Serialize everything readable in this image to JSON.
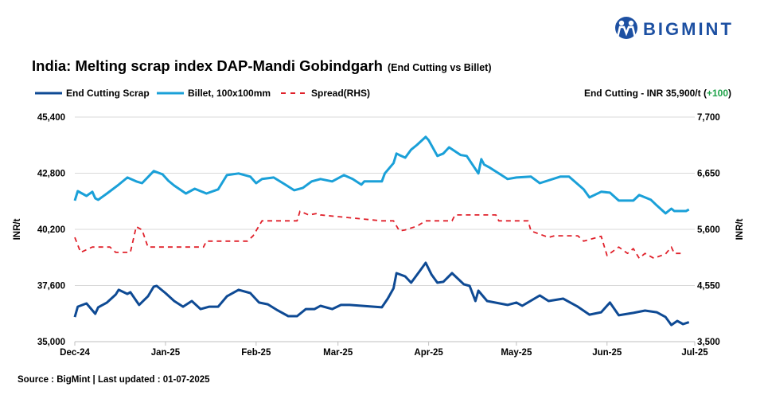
{
  "brand": {
    "name": "BIGMINT",
    "color": "#1d50a2"
  },
  "header": {
    "title": "India: Melting scrap index DAP-Mandi Gobindgarh",
    "subtitle": "(End Cutting vs Billet)",
    "latest_prefix": "End Cutting - INR 35,900/t (",
    "latest_change": "+100",
    "latest_suffix": ")",
    "change_color": "#1fa34a"
  },
  "footer": {
    "source": "Source : BigMint | Last updated : 01-07-2025"
  },
  "chart_data": {
    "type": "line",
    "title": "India: Melting scrap index DAP-Mandi Gobindgarh (End Cutting vs Billet)",
    "xlabel": "",
    "ylabel": "INR/t",
    "y2label": "INR/t",
    "xlim": [
      "2024-12-01",
      "2025-07-01"
    ],
    "ylim": [
      35000,
      45400
    ],
    "y2lim": [
      3500,
      7700
    ],
    "yticks": [
      "35,000",
      "37,600",
      "40,200",
      "42,800",
      "45,400"
    ],
    "y2ticks": [
      "3,500",
      "4,550",
      "5,600",
      "6,650",
      "7,700"
    ],
    "xticks": [
      {
        "date": "2024-12-01",
        "label": "Dec-24"
      },
      {
        "date": "2025-01-01",
        "label": "Jan-25"
      },
      {
        "date": "2025-02-01",
        "label": "Feb-25"
      },
      {
        "date": "2025-03-01",
        "label": "Mar-25"
      },
      {
        "date": "2025-04-01",
        "label": "Apr-25"
      },
      {
        "date": "2025-05-01",
        "label": "May-25"
      },
      {
        "date": "2025-06-01",
        "label": "Jun-25"
      },
      {
        "date": "2025-07-01",
        "label": "Jul-25"
      }
    ],
    "grid": true,
    "legend": "top-left",
    "series": [
      {
        "name": "End Cutting Scrap",
        "axis": "left",
        "color": "#0e4a94",
        "style": "solid",
        "points": [
          [
            "2024-12-01",
            36140
          ],
          [
            "2024-12-02",
            36620
          ],
          [
            "2024-12-05",
            36770
          ],
          [
            "2024-12-08",
            36290
          ],
          [
            "2024-12-09",
            36590
          ],
          [
            "2024-12-12",
            36810
          ],
          [
            "2024-12-15",
            37180
          ],
          [
            "2024-12-16",
            37400
          ],
          [
            "2024-12-19",
            37210
          ],
          [
            "2024-12-20",
            37290
          ],
          [
            "2024-12-23",
            36700
          ],
          [
            "2024-12-26",
            37100
          ],
          [
            "2024-12-28",
            37550
          ],
          [
            "2024-12-29",
            37580
          ],
          [
            "2025-01-01",
            37250
          ],
          [
            "2025-01-04",
            36880
          ],
          [
            "2025-01-07",
            36620
          ],
          [
            "2025-01-10",
            36880
          ],
          [
            "2025-01-13",
            36510
          ],
          [
            "2025-01-16",
            36620
          ],
          [
            "2025-01-19",
            36620
          ],
          [
            "2025-01-22",
            37100
          ],
          [
            "2025-01-26",
            37400
          ],
          [
            "2025-01-30",
            37250
          ],
          [
            "2025-02-02",
            36810
          ],
          [
            "2025-02-05",
            36730
          ],
          [
            "2025-02-08",
            36480
          ],
          [
            "2025-02-12",
            36180
          ],
          [
            "2025-02-15",
            36180
          ],
          [
            "2025-02-18",
            36510
          ],
          [
            "2025-02-21",
            36510
          ],
          [
            "2025-02-23",
            36660
          ],
          [
            "2025-02-27",
            36510
          ],
          [
            "2025-03-02",
            36700
          ],
          [
            "2025-03-05",
            36700
          ],
          [
            "2025-03-16",
            36590
          ],
          [
            "2025-03-18",
            36990
          ],
          [
            "2025-03-20",
            37470
          ],
          [
            "2025-03-21",
            38170
          ],
          [
            "2025-03-24",
            38020
          ],
          [
            "2025-03-26",
            37730
          ],
          [
            "2025-03-29",
            38280
          ],
          [
            "2025-03-31",
            38650
          ],
          [
            "2025-04-02",
            38100
          ],
          [
            "2025-04-04",
            37730
          ],
          [
            "2025-04-06",
            37770
          ],
          [
            "2025-04-09",
            38170
          ],
          [
            "2025-04-13",
            37660
          ],
          [
            "2025-04-15",
            37580
          ],
          [
            "2025-04-17",
            36880
          ],
          [
            "2025-04-18",
            37360
          ],
          [
            "2025-04-21",
            36880
          ],
          [
            "2025-04-28",
            36700
          ],
          [
            "2025-05-01",
            36810
          ],
          [
            "2025-05-03",
            36660
          ],
          [
            "2025-05-09",
            37140
          ],
          [
            "2025-05-12",
            36880
          ],
          [
            "2025-05-17",
            36990
          ],
          [
            "2025-05-22",
            36620
          ],
          [
            "2025-05-26",
            36250
          ],
          [
            "2025-05-30",
            36360
          ],
          [
            "2025-06-02",
            36810
          ],
          [
            "2025-06-05",
            36220
          ],
          [
            "2025-06-10",
            36330
          ],
          [
            "2025-06-14",
            36440
          ],
          [
            "2025-06-18",
            36360
          ],
          [
            "2025-06-21",
            36140
          ],
          [
            "2025-06-23",
            35770
          ],
          [
            "2025-06-25",
            35960
          ],
          [
            "2025-06-27",
            35810
          ],
          [
            "2025-06-29",
            35900
          ]
        ]
      },
      {
        "name": "Billet, 100x100mm",
        "axis": "left",
        "color": "#1aa0d8",
        "style": "solid",
        "points": [
          [
            "2024-12-01",
            41530
          ],
          [
            "2024-12-02",
            41970
          ],
          [
            "2024-12-05",
            41750
          ],
          [
            "2024-12-07",
            41940
          ],
          [
            "2024-12-08",
            41640
          ],
          [
            "2024-12-09",
            41570
          ],
          [
            "2024-12-12",
            41860
          ],
          [
            "2024-12-16",
            42270
          ],
          [
            "2024-12-19",
            42600
          ],
          [
            "2024-12-22",
            42420
          ],
          [
            "2024-12-24",
            42340
          ],
          [
            "2024-12-28",
            42900
          ],
          [
            "2024-12-31",
            42750
          ],
          [
            "2025-01-02",
            42450
          ],
          [
            "2025-01-04",
            42230
          ],
          [
            "2025-01-08",
            41860
          ],
          [
            "2025-01-11",
            42080
          ],
          [
            "2025-01-15",
            41860
          ],
          [
            "2025-01-19",
            42050
          ],
          [
            "2025-01-22",
            42710
          ],
          [
            "2025-01-26",
            42790
          ],
          [
            "2025-01-30",
            42640
          ],
          [
            "2025-02-01",
            42340
          ],
          [
            "2025-02-03",
            42530
          ],
          [
            "2025-02-07",
            42600
          ],
          [
            "2025-02-11",
            42270
          ],
          [
            "2025-02-14",
            42010
          ],
          [
            "2025-02-17",
            42120
          ],
          [
            "2025-02-20",
            42420
          ],
          [
            "2025-02-23",
            42530
          ],
          [
            "2025-02-27",
            42420
          ],
          [
            "2025-03-03",
            42710
          ],
          [
            "2025-03-06",
            42530
          ],
          [
            "2025-03-09",
            42270
          ],
          [
            "2025-03-10",
            42420
          ],
          [
            "2025-03-16",
            42420
          ],
          [
            "2025-03-17",
            42790
          ],
          [
            "2025-03-20",
            43270
          ],
          [
            "2025-03-21",
            43710
          ],
          [
            "2025-03-22",
            43640
          ],
          [
            "2025-03-24",
            43520
          ],
          [
            "2025-03-26",
            43890
          ],
          [
            "2025-03-28",
            44110
          ],
          [
            "2025-03-31",
            44480
          ],
          [
            "2025-04-01",
            44330
          ],
          [
            "2025-04-04",
            43600
          ],
          [
            "2025-04-06",
            43710
          ],
          [
            "2025-04-08",
            44000
          ],
          [
            "2025-04-12",
            43640
          ],
          [
            "2025-04-14",
            43600
          ],
          [
            "2025-04-18",
            42790
          ],
          [
            "2025-04-19",
            43450
          ],
          [
            "2025-04-20",
            43200
          ],
          [
            "2025-04-22",
            43050
          ],
          [
            "2025-04-25",
            42790
          ],
          [
            "2025-04-28",
            42530
          ],
          [
            "2025-05-01",
            42600
          ],
          [
            "2025-05-06",
            42640
          ],
          [
            "2025-05-09",
            42340
          ],
          [
            "2025-05-16",
            42640
          ],
          [
            "2025-05-19",
            42640
          ],
          [
            "2025-05-24",
            42050
          ],
          [
            "2025-05-26",
            41680
          ],
          [
            "2025-05-30",
            41940
          ],
          [
            "2025-06-02",
            41900
          ],
          [
            "2025-06-05",
            41530
          ],
          [
            "2025-06-10",
            41530
          ],
          [
            "2025-06-12",
            41790
          ],
          [
            "2025-06-16",
            41570
          ],
          [
            "2025-06-18",
            41310
          ],
          [
            "2025-06-21",
            40940
          ],
          [
            "2025-06-23",
            41160
          ],
          [
            "2025-06-24",
            41050
          ],
          [
            "2025-06-28",
            41050
          ],
          [
            "2025-06-29",
            41120
          ]
        ]
      },
      {
        "name": "Spread(RHS)",
        "axis": "right",
        "color": "#e0202a",
        "style": "dashed",
        "points": [
          [
            "2024-12-01",
            5450
          ],
          [
            "2024-12-03",
            5170
          ],
          [
            "2024-12-07",
            5270
          ],
          [
            "2024-12-13",
            5270
          ],
          [
            "2024-12-15",
            5170
          ],
          [
            "2024-12-20",
            5170
          ],
          [
            "2024-12-22",
            5650
          ],
          [
            "2024-12-24",
            5590
          ],
          [
            "2024-12-26",
            5270
          ],
          [
            "2025-01-14",
            5270
          ],
          [
            "2025-01-15",
            5380
          ],
          [
            "2025-01-29",
            5380
          ],
          [
            "2025-01-31",
            5480
          ],
          [
            "2025-02-03",
            5760
          ],
          [
            "2025-02-15",
            5760
          ],
          [
            "2025-02-16",
            5940
          ],
          [
            "2025-02-19",
            5870
          ],
          [
            "2025-02-22",
            5900
          ],
          [
            "2025-02-23",
            5870
          ],
          [
            "2025-03-16",
            5760
          ],
          [
            "2025-03-20",
            5760
          ],
          [
            "2025-03-22",
            5570
          ],
          [
            "2025-03-24",
            5590
          ],
          [
            "2025-03-28",
            5660
          ],
          [
            "2025-03-31",
            5760
          ],
          [
            "2025-04-09",
            5760
          ],
          [
            "2025-04-10",
            5870
          ],
          [
            "2025-04-24",
            5870
          ],
          [
            "2025-04-25",
            5760
          ],
          [
            "2025-05-05",
            5760
          ],
          [
            "2025-05-06",
            5570
          ],
          [
            "2025-05-12",
            5450
          ],
          [
            "2025-05-14",
            5480
          ],
          [
            "2025-05-22",
            5480
          ],
          [
            "2025-05-24",
            5380
          ],
          [
            "2025-05-30",
            5470
          ],
          [
            "2025-06-01",
            5110
          ],
          [
            "2025-06-05",
            5270
          ],
          [
            "2025-06-08",
            5150
          ],
          [
            "2025-06-10",
            5240
          ],
          [
            "2025-06-12",
            5060
          ],
          [
            "2025-06-14",
            5150
          ],
          [
            "2025-06-17",
            5060
          ],
          [
            "2025-06-21",
            5140
          ],
          [
            "2025-06-23",
            5270
          ],
          [
            "2025-06-24",
            5150
          ],
          [
            "2025-06-27",
            5150
          ]
        ]
      }
    ]
  }
}
